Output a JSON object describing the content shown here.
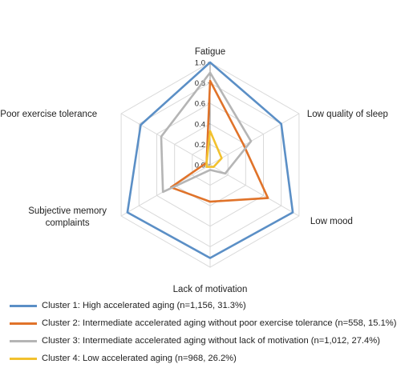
{
  "chart_data": {
    "type": "radar",
    "axes": [
      "Fatigue",
      "Low quality of sleep",
      "Low mood",
      "Lack of motivation",
      "Subjective memory complaints",
      "Poor exercise tolerance"
    ],
    "tick_labels": [
      "0.0",
      "0.2",
      "0.4",
      "0.6",
      "0.8",
      "1.0"
    ],
    "ticks": [
      0.0,
      0.2,
      0.4,
      0.6,
      0.8,
      1.0
    ],
    "rlim": [
      0,
      1
    ],
    "grid": true,
    "legend_position": "bottom",
    "series": [
      {
        "name": "Cluster 1: High accelerated aging (n=1,156, 31.3%)",
        "color": "#5b8fc6",
        "values": [
          1.0,
          0.8,
          0.93,
          0.91,
          0.93,
          0.78
        ]
      },
      {
        "name": "Cluster 2: Intermediate accelerated aging without poor exercise tolerance (n=558, 15.1%)",
        "color": "#e0732a",
        "values": [
          0.82,
          0.38,
          0.65,
          0.36,
          0.44,
          0.04
        ]
      },
      {
        "name": "Cluster 3: Intermediate accelerated aging without lack of motivation (n=1,012, 27.4%)",
        "color": "#b5b5b5",
        "values": [
          0.9,
          0.46,
          0.17,
          0.05,
          0.53,
          0.55
        ]
      },
      {
        "name": "Cluster 4: Low accelerated aging (n=968, 26.2%)",
        "color": "#f2c12e",
        "values": [
          0.33,
          0.13,
          0.04,
          0.02,
          0.04,
          0.04
        ]
      }
    ]
  }
}
